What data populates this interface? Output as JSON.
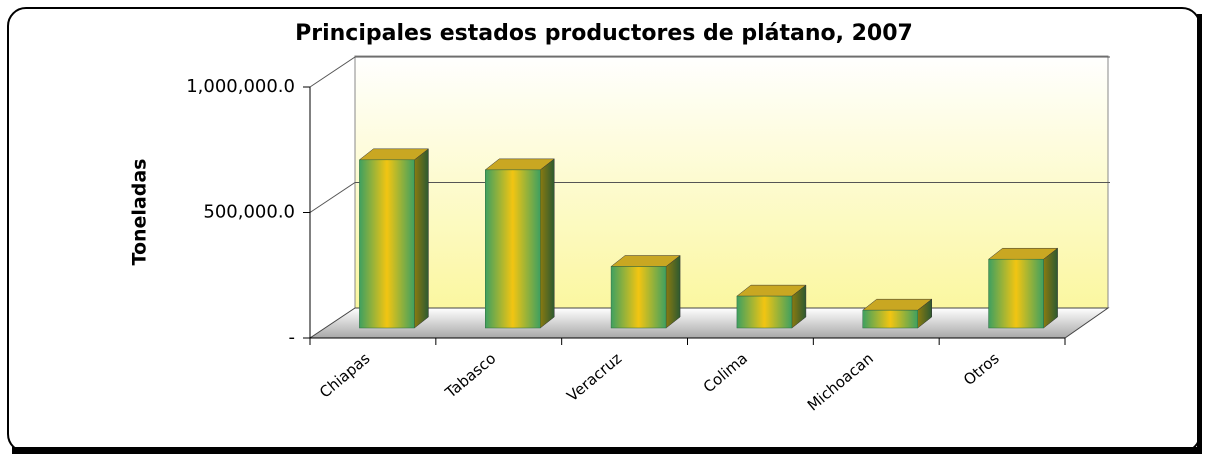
{
  "chart_data": {
    "type": "bar",
    "title": "Principales estados productores de plátano, 2007",
    "y_label": "Toneladas",
    "categories": [
      "Chiapas",
      "Tabasco",
      "Veracruz",
      "Colima",
      "Michoacan",
      "Otros"
    ],
    "values": [
      670000,
      630000,
      245000,
      127000,
      71000,
      274000
    ],
    "ylim": [
      0,
      1000000
    ],
    "yticks": [
      {
        "value": 0,
        "label": "-"
      },
      {
        "value": 500000,
        "label": "500,000.0"
      },
      {
        "value": 1000000,
        "label": "1,000,000.0"
      }
    ],
    "grid": true
  }
}
